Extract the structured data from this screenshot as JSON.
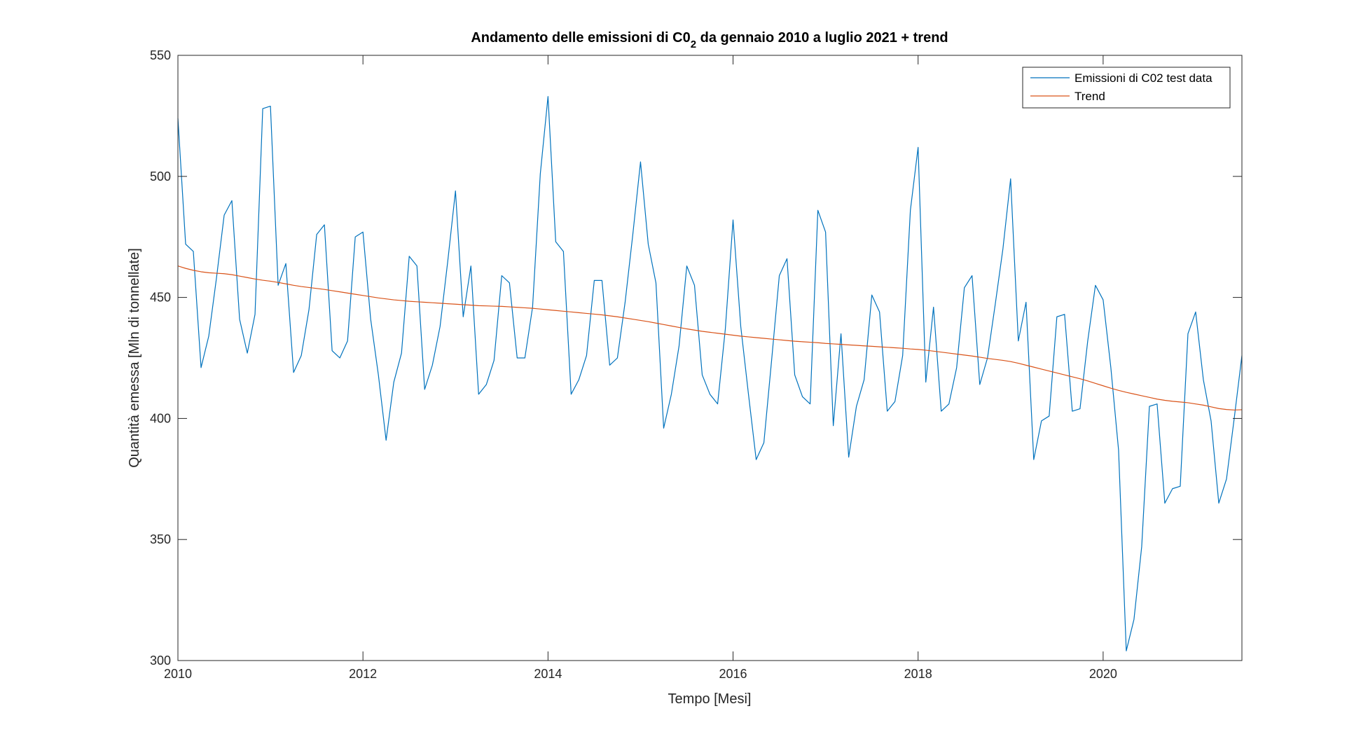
{
  "chart_data": {
    "type": "line",
    "title": "Andamento delle emissioni di C0",
    "title_subscript": "2",
    "title_suffix": " da gennaio 2010 a luglio 2021 + trend",
    "xlabel": "Tempo [Mesi]",
    "ylabel": "Quantità emessa [Mln di tonnellate]",
    "xlim": [
      2010,
      2021.5
    ],
    "ylim": [
      300,
      550
    ],
    "xticks": [
      2010,
      2012,
      2014,
      2016,
      2018,
      2020
    ],
    "yticks": [
      300,
      350,
      400,
      450,
      500,
      550
    ],
    "grid": false,
    "legend_position": "top-right",
    "colors": {
      "series1": "#0072BD",
      "series2": "#D95319",
      "axis": "#262626"
    },
    "series": [
      {
        "name": "Emissioni di C02 test data",
        "x_start": 2010,
        "x_step_months": 1,
        "values": [
          524,
          472,
          469,
          421,
          434,
          458,
          484,
          490,
          441,
          427,
          443,
          528,
          529,
          455,
          464,
          419,
          426,
          445,
          476,
          480,
          428,
          425,
          432,
          475,
          477,
          441,
          418,
          391,
          415,
          427,
          467,
          463,
          412,
          422,
          438,
          465,
          494,
          442,
          463,
          410,
          414,
          424,
          459,
          456,
          425,
          425,
          446,
          501,
          533,
          473,
          469,
          410,
          416,
          426,
          457,
          457,
          422,
          425,
          448,
          476,
          506,
          472,
          456,
          396,
          410,
          430,
          463,
          455,
          418,
          410,
          406,
          437,
          482,
          438,
          410,
          383,
          390,
          424,
          459,
          466,
          418,
          409,
          406,
          486,
          477,
          397,
          435,
          384,
          405,
          416,
          451,
          444,
          403,
          407,
          426,
          486,
          512,
          415,
          446,
          403,
          406,
          421,
          454,
          459,
          414,
          425,
          447,
          470,
          499,
          432,
          448,
          383,
          399,
          401,
          442,
          443,
          403,
          404,
          432,
          455,
          449,
          421,
          387,
          304,
          317,
          347,
          405,
          406,
          365,
          371,
          372,
          435,
          444,
          416,
          399,
          365,
          375,
          400,
          426
        ]
      },
      {
        "name": "Trend",
        "x_start": 2010,
        "x_step_months": 1,
        "values": [
          463.0,
          462.0,
          461.2,
          460.6,
          460.2,
          460.0,
          459.8,
          459.4,
          458.8,
          458.2,
          457.6,
          457.1,
          456.7,
          456.2,
          455.6,
          455.0,
          454.5,
          454.1,
          453.7,
          453.3,
          452.8,
          452.3,
          451.8,
          451.3,
          450.8,
          450.3,
          449.8,
          449.4,
          449.0,
          448.7,
          448.4,
          448.2,
          448.0,
          447.8,
          447.6,
          447.4,
          447.2,
          447.0,
          446.8,
          446.6,
          446.5,
          446.4,
          446.3,
          446.1,
          445.9,
          445.7,
          445.5,
          445.2,
          444.9,
          444.6,
          444.3,
          444.0,
          443.7,
          443.4,
          443.1,
          442.8,
          442.4,
          442.0,
          441.5,
          441.0,
          440.5,
          440.0,
          439.4,
          438.8,
          438.2,
          437.6,
          437.0,
          436.5,
          436.0,
          435.6,
          435.2,
          434.8,
          434.4,
          434.0,
          433.7,
          433.4,
          433.1,
          432.8,
          432.5,
          432.2,
          431.9,
          431.7,
          431.5,
          431.3,
          431.0,
          430.8,
          430.6,
          430.4,
          430.2,
          430.0,
          429.8,
          429.6,
          429.4,
          429.2,
          429.0,
          428.7,
          428.5,
          428.2,
          427.8,
          427.4,
          427.0,
          426.6,
          426.2,
          425.8,
          425.3,
          424.8,
          424.4,
          424.0,
          423.5,
          422.8,
          422.0,
          421.2,
          420.4,
          419.6,
          418.8,
          418.0,
          417.2,
          416.4,
          415.5,
          414.5,
          413.5,
          412.5,
          411.6,
          410.8,
          410.1,
          409.4,
          408.7,
          408.0,
          407.5,
          407.1,
          406.8,
          406.5,
          406.0,
          405.5,
          404.8,
          404.1,
          403.7,
          403.5,
          403.6
        ]
      }
    ]
  }
}
